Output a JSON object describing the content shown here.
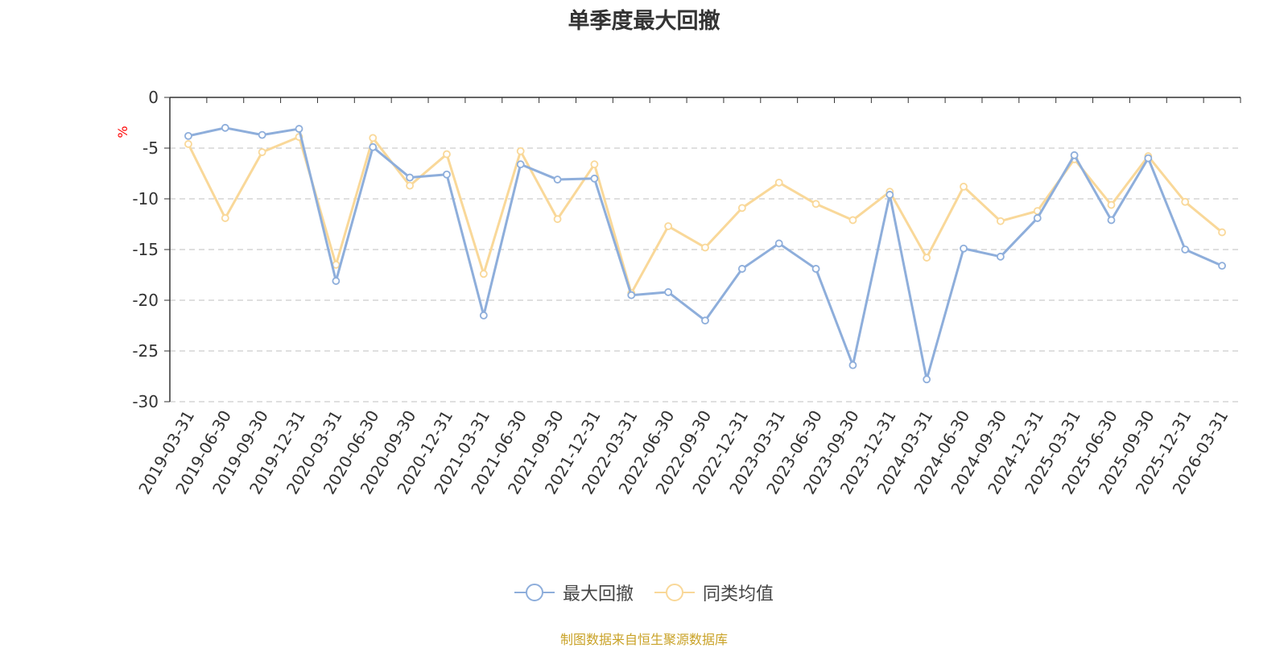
{
  "title": "单季度最大回撤",
  "source": "制图数据来自恒生聚源数据库",
  "chart_data": {
    "type": "line",
    "title": "单季度最大回撤",
    "ylabel": "%",
    "ylim": [
      -30,
      0
    ],
    "yticks": [
      0,
      -5,
      -10,
      -15,
      -20,
      -25,
      -30
    ],
    "grid": true,
    "legend_position": "bottom",
    "categories": [
      "2019-03-31",
      "2019-06-30",
      "2019-09-30",
      "2019-12-31",
      "2020-03-31",
      "2020-06-30",
      "2020-09-30",
      "2020-12-31",
      "2021-03-31",
      "2021-06-30",
      "2021-09-30",
      "2021-12-31",
      "2022-03-31",
      "2022-06-30",
      "2022-09-30",
      "2022-12-31",
      "2023-03-31",
      "2023-06-30",
      "2023-09-30",
      "2023-12-31",
      "2024-03-31",
      "2024-06-30",
      "2024-09-30",
      "2024-12-31",
      "2025-03-31",
      "2025-06-30",
      "2025-09-30",
      "2025-12-31",
      "2026-03-31"
    ],
    "series": [
      {
        "name": "最大回撤",
        "color": "#8eaedb",
        "values": [
          -3.8,
          -3.0,
          -3.7,
          -3.1,
          -18.1,
          -4.9,
          -7.9,
          -7.6,
          -21.5,
          -6.6,
          -8.1,
          -8.0,
          -19.5,
          -19.2,
          -22.0,
          -16.9,
          -14.4,
          -16.9,
          -26.4,
          -9.6,
          -27.8,
          -14.9,
          -15.7,
          -11.9,
          -5.7,
          -12.1,
          -6.0,
          -15.0,
          -16.6
        ]
      },
      {
        "name": "同类均值",
        "color": "#f9d899",
        "values": [
          -4.6,
          -11.9,
          -5.4,
          -3.9,
          -16.5,
          -4.0,
          -8.7,
          -5.6,
          -17.4,
          -5.3,
          -12.0,
          -6.6,
          -19.3,
          -12.7,
          -14.8,
          -10.9,
          -8.4,
          -10.5,
          -12.1,
          -9.3,
          -15.8,
          -8.8,
          -12.2,
          -11.2,
          -6.1,
          -10.6,
          -5.8,
          -10.3,
          -13.3
        ]
      }
    ]
  }
}
